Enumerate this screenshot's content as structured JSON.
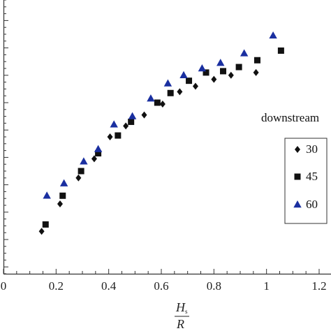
{
  "chart_data": {
    "type": "scatter",
    "title": "",
    "xlabel": {
      "main": "H",
      "sub": "s",
      "denominator": "R"
    },
    "ylabel": "",
    "xlim": [
      0,
      1.2
    ],
    "xticks": [
      "0",
      "0.2",
      "0.4",
      "0.6",
      "0.8",
      "1",
      "1.2"
    ],
    "ylim": [
      0,
      1
    ],
    "grid": false,
    "annotation": "downstream",
    "legend_position": "right",
    "series": [
      {
        "name": "30",
        "marker": "diamond",
        "color": "#111111",
        "x": [
          0.145,
          0.215,
          0.285,
          0.345,
          0.405,
          0.465,
          0.535,
          0.605,
          0.67,
          0.73,
          0.8,
          0.865,
          0.96
        ],
        "y": [
          0.155,
          0.255,
          0.35,
          0.42,
          0.5,
          0.54,
          0.58,
          0.62,
          0.665,
          0.685,
          0.71,
          0.725,
          0.735
        ]
      },
      {
        "name": "45",
        "marker": "square",
        "color": "#111111",
        "x": [
          0.16,
          0.225,
          0.295,
          0.36,
          0.435,
          0.485,
          0.585,
          0.635,
          0.705,
          0.77,
          0.835,
          0.895,
          0.965,
          1.055
        ],
        "y": [
          0.18,
          0.285,
          0.375,
          0.44,
          0.505,
          0.555,
          0.625,
          0.66,
          0.705,
          0.735,
          0.74,
          0.755,
          0.78,
          0.815
        ]
      },
      {
        "name": "60",
        "marker": "triangle",
        "color": "#1a2fa0",
        "x": [
          0.165,
          0.23,
          0.305,
          0.36,
          0.42,
          0.49,
          0.56,
          0.625,
          0.685,
          0.755,
          0.825,
          0.915,
          1.025
        ],
        "y": [
          0.285,
          0.33,
          0.41,
          0.455,
          0.545,
          0.575,
          0.64,
          0.695,
          0.725,
          0.75,
          0.77,
          0.805,
          0.87
        ]
      }
    ]
  }
}
